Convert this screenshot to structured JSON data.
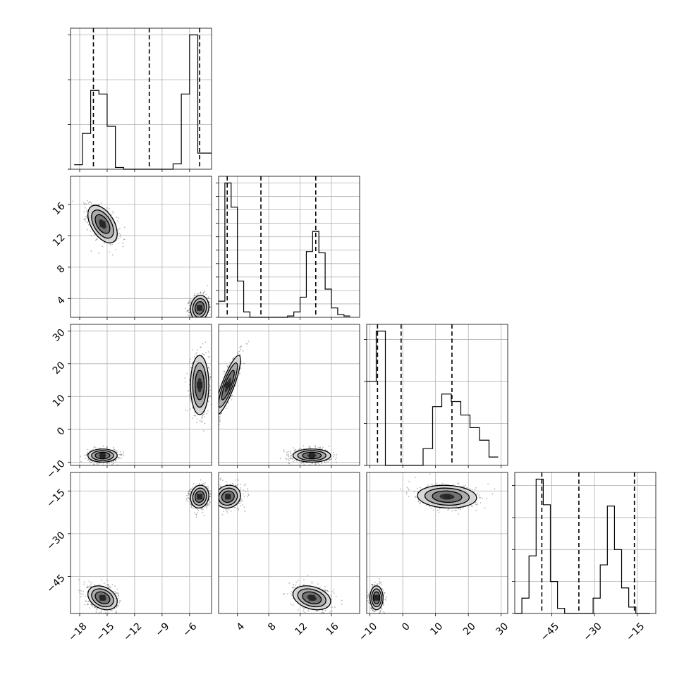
{
  "figure": {
    "background": "#ffffff",
    "fill_colors": [
      "#f2f2f2",
      "#d5d5d5",
      "#a8a8a8",
      "#6e6e6e",
      "#262626"
    ],
    "scatter_color": "#333333"
  },
  "chart_data": {
    "type": "corner",
    "n_params": 4,
    "grid": true,
    "params": [
      {
        "range": [
          -19,
          -3.6
        ],
        "ticks": [
          -18,
          -15,
          -12,
          -9,
          -6
        ],
        "tick_labels": [
          "−18",
          "−15",
          "−12",
          "−9",
          "−6"
        ]
      },
      {
        "range": [
          1.6,
          19.6
        ],
        "ticks": [
          4,
          8,
          12,
          16
        ],
        "tick_labels": [
          "4",
          "8",
          "12",
          "16"
        ]
      },
      {
        "range": [
          -11,
          32
        ],
        "ticks": [
          -10,
          0,
          10,
          20,
          30
        ],
        "tick_labels": [
          "−10",
          "0",
          "10",
          "20",
          "30"
        ]
      },
      {
        "range": [
          -58,
          -8.5
        ],
        "ticks": [
          -45,
          -30,
          -15
        ],
        "tick_labels": [
          "−45",
          "−30",
          "−15"
        ]
      }
    ],
    "histograms": [
      {
        "bins": [
          -18.6,
          -17.7,
          -16.8,
          -15.9,
          -15.0,
          -14.1,
          -13.2,
          -12.3,
          -11.4,
          -10.5,
          -9.6,
          -8.7,
          -7.8,
          -6.9,
          -6.0,
          -5.1,
          -4.2,
          -3.6
        ],
        "counts": [
          0.05,
          0.4,
          0.88,
          0.84,
          0.48,
          0.02,
          0,
          0,
          0,
          0,
          0,
          0,
          0.06,
          0.84,
          1.5,
          0.18,
          0.18
        ],
        "ticks": [
          0,
          0.5,
          1.0,
          1.5
        ],
        "quantiles": [
          -16.5,
          -10.4,
          -4.9
        ]
      },
      {
        "bins": [
          1.6,
          2.4,
          3.2,
          4.0,
          4.8,
          5.6,
          6.4,
          7.2,
          8.0,
          8.8,
          9.6,
          10.4,
          11.2,
          12.0,
          12.8,
          13.6,
          14.4,
          15.2,
          16.0,
          16.8,
          17.6,
          18.4
        ],
        "counts": [
          0.12,
          1.0,
          0.82,
          0.27,
          0.04,
          0,
          0,
          0,
          0,
          0,
          0,
          0.01,
          0.04,
          0.15,
          0.49,
          0.64,
          0.48,
          0.21,
          0.07,
          0.02,
          0.01
        ],
        "ticks": [
          0.1,
          0.2,
          0.3,
          0.4,
          0.5,
          0.6,
          0.7,
          0.8,
          0.9,
          1.0
        ],
        "quantiles": [
          2.7,
          7.0,
          14.0
        ]
      },
      {
        "bins": [
          -11,
          -8.1,
          -5.3,
          -2.4,
          0.5,
          3.3,
          6.2,
          9.1,
          11.9,
          14.8,
          17.7,
          20.5,
          23.4,
          26.3,
          29.1
        ],
        "counts": [
          1.0,
          1.6,
          0,
          0,
          0,
          0,
          0.2,
          0.7,
          0.85,
          0.76,
          0.6,
          0.45,
          0.3,
          0.1
        ],
        "ticks": [
          0.5,
          1.0,
          1.5
        ],
        "quantiles": [
          -7.7,
          -0.5,
          15.0
        ]
      },
      {
        "bins": [
          -58,
          -55.5,
          -53.0,
          -50.5,
          -48.0,
          -45.5,
          -43.0,
          -40.5,
          -38.0,
          -35.5,
          -33.0,
          -30.5,
          -28.0,
          -25.5,
          -23.0,
          -20.5,
          -18.0,
          -15.5,
          -13.0,
          -10.5
        ],
        "counts": [
          0,
          0.12,
          0.45,
          1.05,
          0.85,
          0.25,
          0.04,
          0,
          0,
          0,
          0,
          0.12,
          0.38,
          0.84,
          0.5,
          0.2,
          0.05,
          0,
          0
        ],
        "ticks": [
          0.25,
          0.5,
          0.75,
          1.0
        ],
        "quantiles": [
          -48.5,
          -35.5,
          -16.0
        ]
      }
    ],
    "modes": [
      {
        "center": [
          -15.5,
          13.5,
          -8.0,
          -52.5
        ],
        "std": [
          0.8,
          1.2,
          1.0,
          2.1
        ],
        "rho": {
          "0-1": -0.5,
          "0-2": 0.0,
          "0-3": -0.3,
          "1-2": 0.0,
          "1-3": -0.3,
          "2-3": 0.0
        },
        "weight": 0.5
      },
      {
        "center": [
          -4.9,
          2.8,
          13.5,
          -17.0
        ],
        "std": [
          0.5,
          0.8,
          4.5,
          2.0
        ],
        "rho": {
          "0-1": 0.1,
          "0-2": 0.0,
          "0-3": 0.1,
          "1-2": 0.85,
          "1-3": 0.1,
          "2-3": -0.1
        },
        "weight": 0.5
      }
    ]
  }
}
